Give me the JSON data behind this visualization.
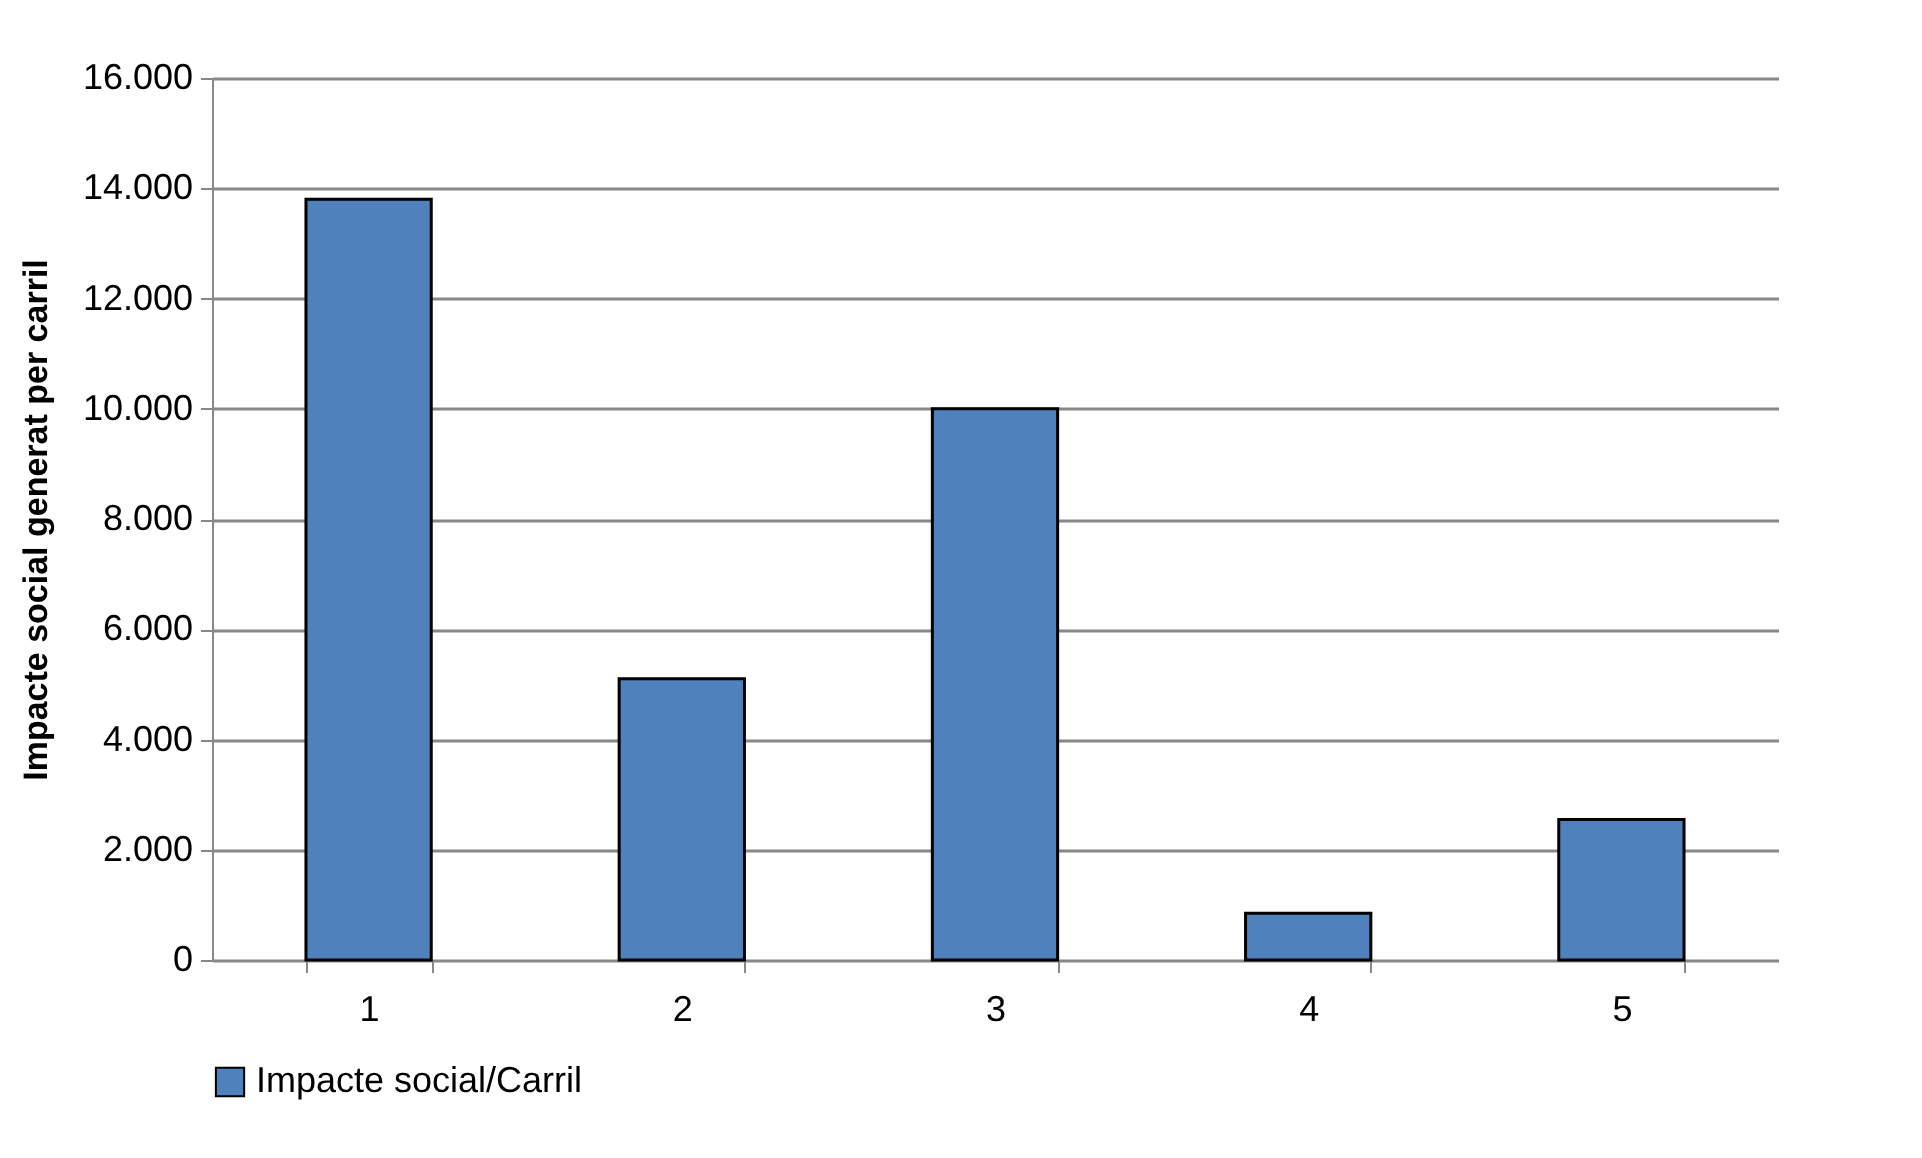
{
  "chart_data": {
    "type": "bar",
    "ylabel": "Impacte social generat per carril",
    "categories": [
      "1",
      "2",
      "3",
      "4",
      "5"
    ],
    "series": [
      {
        "name": "Impacte social/Carril",
        "color": "#4f81bd",
        "values": [
          13800,
          5100,
          10000,
          850,
          2550
        ]
      }
    ],
    "ylim": [
      0,
      16000
    ],
    "yticks": [
      0,
      {
        "value": 2000,
        "label": "2.000"
      },
      {
        "value": 4000,
        "label": "4.000"
      },
      {
        "value": 6000,
        "label": "6.000"
      },
      {
        "value": 8000,
        "label": "8.000"
      },
      {
        "value": 10000,
        "label": "10.000"
      },
      {
        "value": 12000,
        "label": "12.000"
      },
      {
        "value": 14000,
        "label": "14.000"
      },
      {
        "value": 16000,
        "label": "16.000"
      }
    ],
    "grid": "y",
    "legend": "bottom"
  }
}
